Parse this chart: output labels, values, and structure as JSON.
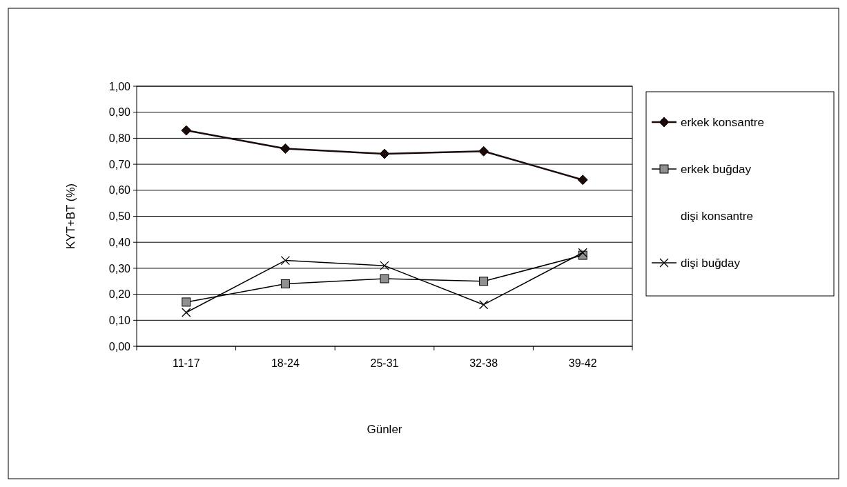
{
  "chart_data": {
    "type": "line",
    "xlabel": "Günler",
    "ylabel": "KYT+BT (%)",
    "categories": [
      "11-17",
      "18-24",
      "25-31",
      "32-38",
      "39-42"
    ],
    "series": [
      {
        "name": "erkek konsantre",
        "color": "#1a0a0a",
        "marker": "diamond",
        "values": [
          0.83,
          0.76,
          0.74,
          0.75,
          0.64
        ]
      },
      {
        "name": "erkek buğday",
        "color": "#000000",
        "marker": "square",
        "values": [
          0.17,
          0.24,
          0.26,
          0.25,
          0.35
        ]
      },
      {
        "name": "dişi konsantre",
        "values": [
          null,
          null,
          null,
          null,
          null
        ]
      },
      {
        "name": "dişi buğday",
        "color": "#000000",
        "marker": "cross",
        "values": [
          0.13,
          0.33,
          0.31,
          0.16,
          0.36
        ]
      }
    ],
    "ylim": [
      0,
      1
    ],
    "yticks": [
      {
        "value": 0,
        "label": "0,00"
      },
      {
        "value": 0.1,
        "label": "0,10"
      },
      {
        "value": 0.2,
        "label": "0,20"
      },
      {
        "value": 0.3,
        "label": "0,30"
      },
      {
        "value": 0.4,
        "label": "0,40"
      },
      {
        "value": 0.5,
        "label": "0,50"
      },
      {
        "value": 0.6,
        "label": "0,60"
      },
      {
        "value": 0.7,
        "label": "0,70"
      },
      {
        "value": 0.8,
        "label": "0,80"
      },
      {
        "value": 0.9,
        "label": "0,90"
      },
      {
        "value": 1,
        "label": "1,00"
      }
    ],
    "grid": "y",
    "legend": "right",
    "line_style": "solid"
  }
}
